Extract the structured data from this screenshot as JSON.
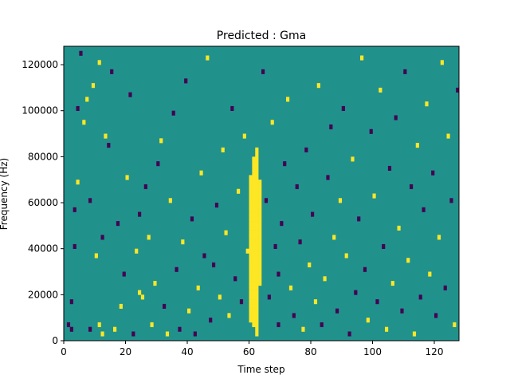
{
  "chart_data": {
    "type": "heatmap",
    "title": "Predicted : Gma",
    "xlabel": "Time step",
    "ylabel": "Frequency (Hz)",
    "xlim": [
      0,
      128
    ],
    "ylim": [
      0,
      128000
    ],
    "xticks": [
      0,
      20,
      40,
      60,
      80,
      100,
      120
    ],
    "yticks": [
      0,
      20000,
      40000,
      60000,
      80000,
      100000,
      120000
    ],
    "n_rows": 64,
    "n_cols": 128,
    "levels": [
      0,
      1,
      2
    ],
    "colors": {
      "0": "#440154",
      "1": "#21918c",
      "2": "#fde725"
    },
    "background_level": 1,
    "cells": [
      {
        "t": 1,
        "f": 3,
        "v": 0
      },
      {
        "t": 2,
        "f": 2,
        "v": 0
      },
      {
        "t": 2,
        "f": 8,
        "v": 0
      },
      {
        "t": 3,
        "f": 20,
        "v": 0
      },
      {
        "t": 3,
        "f": 28,
        "v": 0
      },
      {
        "t": 4,
        "f": 34,
        "v": 2
      },
      {
        "t": 4,
        "f": 50,
        "v": 0
      },
      {
        "t": 5,
        "f": 62,
        "v": 0
      },
      {
        "t": 6,
        "f": 47,
        "v": 2
      },
      {
        "t": 7,
        "f": 52,
        "v": 2
      },
      {
        "t": 8,
        "f": 2,
        "v": 0
      },
      {
        "t": 8,
        "f": 30,
        "v": 0
      },
      {
        "t": 9,
        "f": 55,
        "v": 2
      },
      {
        "t": 10,
        "f": 18,
        "v": 2
      },
      {
        "t": 11,
        "f": 60,
        "v": 2
      },
      {
        "t": 11,
        "f": 3,
        "v": 2
      },
      {
        "t": 12,
        "f": 1,
        "v": 2
      },
      {
        "t": 12,
        "f": 22,
        "v": 0
      },
      {
        "t": 13,
        "f": 44,
        "v": 2
      },
      {
        "t": 14,
        "f": 42,
        "v": 0
      },
      {
        "t": 15,
        "f": 58,
        "v": 0
      },
      {
        "t": 16,
        "f": 2,
        "v": 2
      },
      {
        "t": 17,
        "f": 25,
        "v": 0
      },
      {
        "t": 18,
        "f": 7,
        "v": 2
      },
      {
        "t": 19,
        "f": 14,
        "v": 0
      },
      {
        "t": 20,
        "f": 35,
        "v": 2
      },
      {
        "t": 21,
        "f": 53,
        "v": 0
      },
      {
        "t": 22,
        "f": 1,
        "v": 0
      },
      {
        "t": 23,
        "f": 19,
        "v": 2
      },
      {
        "t": 24,
        "f": 27,
        "v": 0
      },
      {
        "t": 24,
        "f": 10,
        "v": 2
      },
      {
        "t": 25,
        "f": 9,
        "v": 2
      },
      {
        "t": 26,
        "f": 33,
        "v": 0
      },
      {
        "t": 27,
        "f": 22,
        "v": 2
      },
      {
        "t": 28,
        "f": 3,
        "v": 2
      },
      {
        "t": 29,
        "f": 12,
        "v": 2
      },
      {
        "t": 30,
        "f": 38,
        "v": 0
      },
      {
        "t": 31,
        "f": 43,
        "v": 2
      },
      {
        "t": 32,
        "f": 7,
        "v": 0
      },
      {
        "t": 33,
        "f": 1,
        "v": 2
      },
      {
        "t": 34,
        "f": 30,
        "v": 2
      },
      {
        "t": 35,
        "f": 49,
        "v": 0
      },
      {
        "t": 36,
        "f": 15,
        "v": 0
      },
      {
        "t": 37,
        "f": 2,
        "v": 0
      },
      {
        "t": 38,
        "f": 21,
        "v": 2
      },
      {
        "t": 39,
        "f": 56,
        "v": 0
      },
      {
        "t": 40,
        "f": 6,
        "v": 2
      },
      {
        "t": 41,
        "f": 26,
        "v": 0
      },
      {
        "t": 42,
        "f": 1,
        "v": 0
      },
      {
        "t": 43,
        "f": 11,
        "v": 2
      },
      {
        "t": 44,
        "f": 36,
        "v": 2
      },
      {
        "t": 45,
        "f": 18,
        "v": 0
      },
      {
        "t": 46,
        "f": 61,
        "v": 2
      },
      {
        "t": 47,
        "f": 4,
        "v": 0
      },
      {
        "t": 48,
        "f": 16,
        "v": 0
      },
      {
        "t": 49,
        "f": 29,
        "v": 0
      },
      {
        "t": 50,
        "f": 9,
        "v": 2
      },
      {
        "t": 51,
        "f": 41,
        "v": 2
      },
      {
        "t": 52,
        "f": 23,
        "v": 2
      },
      {
        "t": 53,
        "f": 5,
        "v": 2
      },
      {
        "t": 54,
        "f": 50,
        "v": 0
      },
      {
        "t": 55,
        "f": 13,
        "v": 0
      },
      {
        "t": 56,
        "f": 32,
        "v": 2
      },
      {
        "t": 57,
        "f": 8,
        "v": 0
      },
      {
        "t": 58,
        "f": 44,
        "v": 2
      },
      {
        "t": 59,
        "f": 19,
        "v": 2
      },
      {
        "t": 60,
        "f": 4,
        "v": 2
      },
      {
        "t": 60,
        "f": 5,
        "v": 2
      },
      {
        "t": 60,
        "f": 6,
        "v": 2
      },
      {
        "t": 60,
        "f": 7,
        "v": 2
      },
      {
        "t": 60,
        "f": 8,
        "v": 2
      },
      {
        "t": 60,
        "f": 9,
        "v": 2
      },
      {
        "t": 60,
        "f": 10,
        "v": 2
      },
      {
        "t": 60,
        "f": 11,
        "v": 2
      },
      {
        "t": 60,
        "f": 12,
        "v": 2
      },
      {
        "t": 60,
        "f": 13,
        "v": 2
      },
      {
        "t": 60,
        "f": 14,
        "v": 2
      },
      {
        "t": 60,
        "f": 15,
        "v": 2
      },
      {
        "t": 60,
        "f": 16,
        "v": 2
      },
      {
        "t": 60,
        "f": 17,
        "v": 2
      },
      {
        "t": 60,
        "f": 18,
        "v": 2
      },
      {
        "t": 60,
        "f": 19,
        "v": 2
      },
      {
        "t": 60,
        "f": 20,
        "v": 2
      },
      {
        "t": 60,
        "f": 21,
        "v": 2
      },
      {
        "t": 60,
        "f": 22,
        "v": 2
      },
      {
        "t": 60,
        "f": 23,
        "v": 2
      },
      {
        "t": 60,
        "f": 24,
        "v": 2
      },
      {
        "t": 60,
        "f": 25,
        "v": 2
      },
      {
        "t": 60,
        "f": 26,
        "v": 2
      },
      {
        "t": 60,
        "f": 27,
        "v": 2
      },
      {
        "t": 60,
        "f": 28,
        "v": 2
      },
      {
        "t": 60,
        "f": 29,
        "v": 2
      },
      {
        "t": 60,
        "f": 30,
        "v": 2
      },
      {
        "t": 60,
        "f": 31,
        "v": 2
      },
      {
        "t": 60,
        "f": 32,
        "v": 2
      },
      {
        "t": 60,
        "f": 33,
        "v": 2
      },
      {
        "t": 60,
        "f": 34,
        "v": 2
      },
      {
        "t": 60,
        "f": 35,
        "v": 2
      },
      {
        "t": 61,
        "f": 3,
        "v": 2
      },
      {
        "t": 61,
        "f": 4,
        "v": 2
      },
      {
        "t": 61,
        "f": 5,
        "v": 2
      },
      {
        "t": 61,
        "f": 6,
        "v": 2
      },
      {
        "t": 61,
        "f": 7,
        "v": 2
      },
      {
        "t": 61,
        "f": 8,
        "v": 2
      },
      {
        "t": 61,
        "f": 9,
        "v": 2
      },
      {
        "t": 61,
        "f": 10,
        "v": 2
      },
      {
        "t": 61,
        "f": 11,
        "v": 2
      },
      {
        "t": 61,
        "f": 12,
        "v": 2
      },
      {
        "t": 61,
        "f": 13,
        "v": 2
      },
      {
        "t": 61,
        "f": 14,
        "v": 2
      },
      {
        "t": 61,
        "f": 15,
        "v": 2
      },
      {
        "t": 61,
        "f": 16,
        "v": 2
      },
      {
        "t": 61,
        "f": 17,
        "v": 2
      },
      {
        "t": 61,
        "f": 18,
        "v": 2
      },
      {
        "t": 61,
        "f": 19,
        "v": 2
      },
      {
        "t": 61,
        "f": 20,
        "v": 2
      },
      {
        "t": 61,
        "f": 21,
        "v": 2
      },
      {
        "t": 61,
        "f": 22,
        "v": 2
      },
      {
        "t": 61,
        "f": 23,
        "v": 2
      },
      {
        "t": 61,
        "f": 24,
        "v": 2
      },
      {
        "t": 61,
        "f": 25,
        "v": 2
      },
      {
        "t": 61,
        "f": 26,
        "v": 2
      },
      {
        "t": 61,
        "f": 27,
        "v": 2
      },
      {
        "t": 61,
        "f": 28,
        "v": 2
      },
      {
        "t": 61,
        "f": 29,
        "v": 2
      },
      {
        "t": 61,
        "f": 30,
        "v": 2
      },
      {
        "t": 61,
        "f": 31,
        "v": 2
      },
      {
        "t": 61,
        "f": 32,
        "v": 2
      },
      {
        "t": 61,
        "f": 33,
        "v": 2
      },
      {
        "t": 61,
        "f": 34,
        "v": 2
      },
      {
        "t": 61,
        "f": 35,
        "v": 2
      },
      {
        "t": 61,
        "f": 36,
        "v": 2
      },
      {
        "t": 61,
        "f": 37,
        "v": 2
      },
      {
        "t": 61,
        "f": 38,
        "v": 2
      },
      {
        "t": 61,
        "f": 39,
        "v": 2
      },
      {
        "t": 62,
        "f": 1,
        "v": 2
      },
      {
        "t": 62,
        "f": 2,
        "v": 2
      },
      {
        "t": 62,
        "f": 3,
        "v": 2
      },
      {
        "t": 62,
        "f": 4,
        "v": 2
      },
      {
        "t": 62,
        "f": 5,
        "v": 2
      },
      {
        "t": 62,
        "f": 6,
        "v": 2
      },
      {
        "t": 62,
        "f": 7,
        "v": 2
      },
      {
        "t": 62,
        "f": 8,
        "v": 2
      },
      {
        "t": 62,
        "f": 9,
        "v": 2
      },
      {
        "t": 62,
        "f": 10,
        "v": 2
      },
      {
        "t": 62,
        "f": 11,
        "v": 2
      },
      {
        "t": 62,
        "f": 12,
        "v": 2
      },
      {
        "t": 62,
        "f": 13,
        "v": 2
      },
      {
        "t": 62,
        "f": 14,
        "v": 2
      },
      {
        "t": 62,
        "f": 15,
        "v": 2
      },
      {
        "t": 62,
        "f": 16,
        "v": 2
      },
      {
        "t": 62,
        "f": 17,
        "v": 2
      },
      {
        "t": 62,
        "f": 18,
        "v": 2
      },
      {
        "t": 62,
        "f": 19,
        "v": 2
      },
      {
        "t": 62,
        "f": 20,
        "v": 2
      },
      {
        "t": 62,
        "f": 21,
        "v": 2
      },
      {
        "t": 62,
        "f": 22,
        "v": 2
      },
      {
        "t": 62,
        "f": 23,
        "v": 2
      },
      {
        "t": 62,
        "f": 24,
        "v": 2
      },
      {
        "t": 62,
        "f": 25,
        "v": 2
      },
      {
        "t": 62,
        "f": 26,
        "v": 2
      },
      {
        "t": 62,
        "f": 27,
        "v": 2
      },
      {
        "t": 62,
        "f": 28,
        "v": 2
      },
      {
        "t": 62,
        "f": 29,
        "v": 2
      },
      {
        "t": 62,
        "f": 30,
        "v": 2
      },
      {
        "t": 62,
        "f": 31,
        "v": 2
      },
      {
        "t": 62,
        "f": 32,
        "v": 2
      },
      {
        "t": 62,
        "f": 33,
        "v": 2
      },
      {
        "t": 62,
        "f": 34,
        "v": 2
      },
      {
        "t": 62,
        "f": 35,
        "v": 2
      },
      {
        "t": 62,
        "f": 36,
        "v": 2
      },
      {
        "t": 62,
        "f": 37,
        "v": 2
      },
      {
        "t": 62,
        "f": 38,
        "v": 2
      },
      {
        "t": 62,
        "f": 39,
        "v": 2
      },
      {
        "t": 62,
        "f": 40,
        "v": 2
      },
      {
        "t": 62,
        "f": 41,
        "v": 2
      },
      {
        "t": 63,
        "f": 12,
        "v": 2
      },
      {
        "t": 63,
        "f": 13,
        "v": 2
      },
      {
        "t": 63,
        "f": 14,
        "v": 2
      },
      {
        "t": 63,
        "f": 15,
        "v": 2
      },
      {
        "t": 63,
        "f": 16,
        "v": 2
      },
      {
        "t": 63,
        "f": 17,
        "v": 2
      },
      {
        "t": 63,
        "f": 18,
        "v": 2
      },
      {
        "t": 63,
        "f": 19,
        "v": 2
      },
      {
        "t": 63,
        "f": 20,
        "v": 2
      },
      {
        "t": 63,
        "f": 21,
        "v": 2
      },
      {
        "t": 63,
        "f": 22,
        "v": 2
      },
      {
        "t": 63,
        "f": 23,
        "v": 2
      },
      {
        "t": 63,
        "f": 24,
        "v": 2
      },
      {
        "t": 63,
        "f": 25,
        "v": 2
      },
      {
        "t": 63,
        "f": 26,
        "v": 2
      },
      {
        "t": 63,
        "f": 27,
        "v": 2
      },
      {
        "t": 63,
        "f": 28,
        "v": 2
      },
      {
        "t": 63,
        "f": 29,
        "v": 2
      },
      {
        "t": 63,
        "f": 30,
        "v": 2
      },
      {
        "t": 63,
        "f": 31,
        "v": 2
      },
      {
        "t": 63,
        "f": 32,
        "v": 2
      },
      {
        "t": 63,
        "f": 33,
        "v": 2
      },
      {
        "t": 63,
        "f": 34,
        "v": 2
      },
      {
        "t": 64,
        "f": 58,
        "v": 0
      },
      {
        "t": 65,
        "f": 30,
        "v": 0
      },
      {
        "t": 66,
        "f": 9,
        "v": 0
      },
      {
        "t": 67,
        "f": 47,
        "v": 2
      },
      {
        "t": 68,
        "f": 20,
        "v": 0
      },
      {
        "t": 69,
        "f": 3,
        "v": 0
      },
      {
        "t": 69,
        "f": 14,
        "v": 0
      },
      {
        "t": 70,
        "f": 25,
        "v": 0
      },
      {
        "t": 71,
        "f": 38,
        "v": 0
      },
      {
        "t": 72,
        "f": 52,
        "v": 2
      },
      {
        "t": 73,
        "f": 11,
        "v": 2
      },
      {
        "t": 74,
        "f": 5,
        "v": 0
      },
      {
        "t": 75,
        "f": 33,
        "v": 0
      },
      {
        "t": 76,
        "f": 21,
        "v": 0
      },
      {
        "t": 77,
        "f": 2,
        "v": 2
      },
      {
        "t": 78,
        "f": 41,
        "v": 0
      },
      {
        "t": 79,
        "f": 16,
        "v": 2
      },
      {
        "t": 80,
        "f": 27,
        "v": 0
      },
      {
        "t": 81,
        "f": 8,
        "v": 2
      },
      {
        "t": 82,
        "f": 55,
        "v": 2
      },
      {
        "t": 83,
        "f": 3,
        "v": 0
      },
      {
        "t": 84,
        "f": 13,
        "v": 2
      },
      {
        "t": 85,
        "f": 35,
        "v": 0
      },
      {
        "t": 86,
        "f": 46,
        "v": 0
      },
      {
        "t": 87,
        "f": 22,
        "v": 2
      },
      {
        "t": 88,
        "f": 6,
        "v": 0
      },
      {
        "t": 89,
        "f": 30,
        "v": 2
      },
      {
        "t": 90,
        "f": 50,
        "v": 0
      },
      {
        "t": 91,
        "f": 18,
        "v": 2
      },
      {
        "t": 92,
        "f": 1,
        "v": 0
      },
      {
        "t": 93,
        "f": 39,
        "v": 2
      },
      {
        "t": 94,
        "f": 10,
        "v": 0
      },
      {
        "t": 95,
        "f": 26,
        "v": 0
      },
      {
        "t": 96,
        "f": 61,
        "v": 2
      },
      {
        "t": 97,
        "f": 15,
        "v": 0
      },
      {
        "t": 98,
        "f": 4,
        "v": 2
      },
      {
        "t": 99,
        "f": 45,
        "v": 0
      },
      {
        "t": 100,
        "f": 31,
        "v": 2
      },
      {
        "t": 101,
        "f": 8,
        "v": 0
      },
      {
        "t": 102,
        "f": 54,
        "v": 2
      },
      {
        "t": 103,
        "f": 20,
        "v": 0
      },
      {
        "t": 104,
        "f": 2,
        "v": 2
      },
      {
        "t": 105,
        "f": 37,
        "v": 0
      },
      {
        "t": 106,
        "f": 12,
        "v": 2
      },
      {
        "t": 107,
        "f": 48,
        "v": 0
      },
      {
        "t": 108,
        "f": 24,
        "v": 2
      },
      {
        "t": 109,
        "f": 6,
        "v": 0
      },
      {
        "t": 110,
        "f": 58,
        "v": 0
      },
      {
        "t": 111,
        "f": 17,
        "v": 2
      },
      {
        "t": 112,
        "f": 33,
        "v": 0
      },
      {
        "t": 113,
        "f": 1,
        "v": 2
      },
      {
        "t": 114,
        "f": 42,
        "v": 2
      },
      {
        "t": 115,
        "f": 9,
        "v": 0
      },
      {
        "t": 116,
        "f": 28,
        "v": 0
      },
      {
        "t": 117,
        "f": 51,
        "v": 2
      },
      {
        "t": 118,
        "f": 14,
        "v": 2
      },
      {
        "t": 119,
        "f": 36,
        "v": 0
      },
      {
        "t": 120,
        "f": 5,
        "v": 0
      },
      {
        "t": 121,
        "f": 22,
        "v": 2
      },
      {
        "t": 122,
        "f": 60,
        "v": 2
      },
      {
        "t": 123,
        "f": 11,
        "v": 0
      },
      {
        "t": 124,
        "f": 44,
        "v": 2
      },
      {
        "t": 125,
        "f": 30,
        "v": 0
      },
      {
        "t": 126,
        "f": 3,
        "v": 2
      },
      {
        "t": 127,
        "f": 54,
        "v": 0
      }
    ]
  }
}
